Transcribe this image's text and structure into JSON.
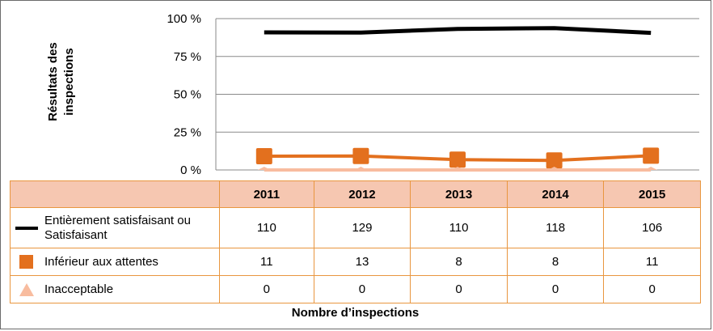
{
  "chart_data": {
    "type": "line",
    "categories": [
      "2011",
      "2012",
      "2013",
      "2014",
      "2015"
    ],
    "ylabel": "Résultats des inspections",
    "xlabel": "Nombre d’inspections",
    "ylim": [
      0,
      100
    ],
    "yticks": [
      "0 %",
      "25 %",
      "50 %",
      "75 %",
      "100 %"
    ],
    "grid": true,
    "series": [
      {
        "name": "Entièrement satisfaisant ou Satisfaisant",
        "color": "#000000",
        "marker": "none",
        "values": [
          90.9,
          90.8,
          93.2,
          93.7,
          90.6
        ],
        "counts": [
          "110",
          "129",
          "110",
          "118",
          "106"
        ]
      },
      {
        "name": "Inférieur aux attentes",
        "color": "#e3701e",
        "marker": "square",
        "values": [
          9.1,
          9.2,
          6.8,
          6.3,
          9.4
        ],
        "counts": [
          "11",
          "13",
          "8",
          "8",
          "11"
        ]
      },
      {
        "name": "Inacceptable",
        "color": "#f8bc9f",
        "marker": "triangle",
        "values": [
          0,
          0,
          0,
          0,
          0
        ],
        "counts": [
          "0",
          "0",
          "0",
          "0",
          "0"
        ]
      }
    ]
  }
}
